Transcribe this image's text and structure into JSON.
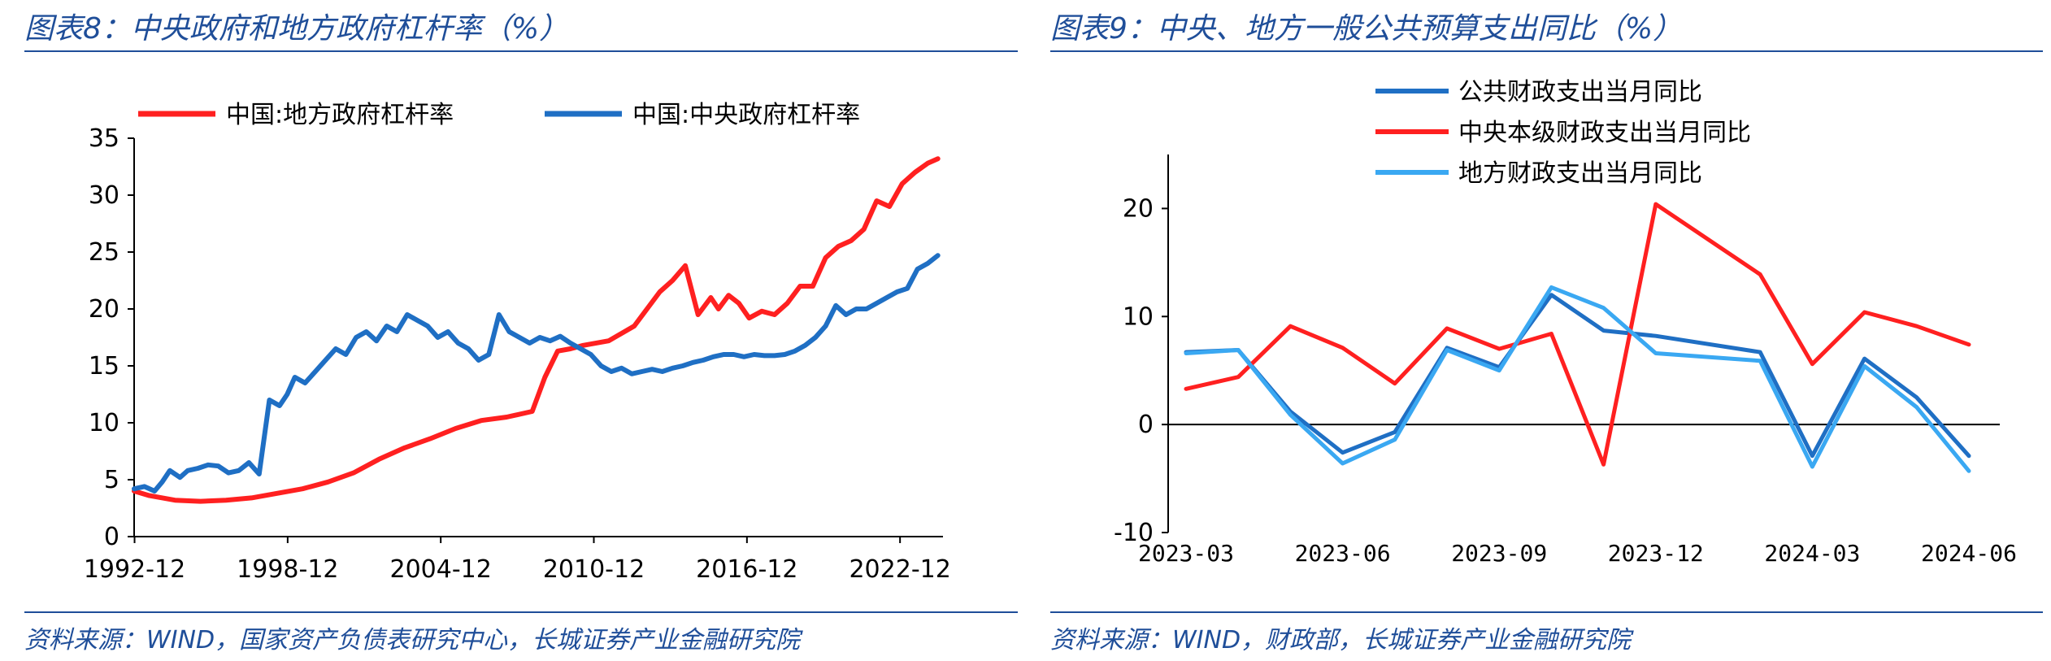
{
  "left": {
    "title": "图表8：中央政府和地方政府杠杆率（%）",
    "source": "资料来源：WIND，国家资产负债表研究中心，长城证券产业金融研究院",
    "chart_data": {
      "type": "line",
      "x_ticks": [
        "1992-12",
        "1998-12",
        "2004-12",
        "2010-12",
        "2016-12",
        "2022-12"
      ],
      "ylim": [
        0,
        35
      ],
      "y_ticks": [
        0,
        5,
        10,
        15,
        20,
        25,
        30,
        35
      ],
      "xlabel": "",
      "ylabel": "",
      "legend_position": "top",
      "series": [
        {
          "name": "中国:地方政府杠杆率",
          "color": "#ff2020",
          "x": [
            1992.9,
            1993.5,
            1994.5,
            1995.5,
            1996.5,
            1997.5,
            1998.5,
            1999.5,
            2000.5,
            2001.5,
            2002.5,
            2003.5,
            2004.5,
            2005.5,
            2006.5,
            2007.5,
            2008.5,
            2009.0,
            2009.5,
            2010.0,
            2010.5,
            2011.5,
            2012.5,
            2013.0,
            2013.5,
            2014.0,
            2014.5,
            2015.0,
            2015.5,
            2015.8,
            2016.2,
            2016.6,
            2017.0,
            2017.5,
            2018.0,
            2018.5,
            2019.0,
            2019.5,
            2020.0,
            2020.5,
            2021.0,
            2021.5,
            2022.0,
            2022.5,
            2023.0,
            2023.5,
            2024.0,
            2024.4
          ],
          "values": [
            4.0,
            3.6,
            3.2,
            3.1,
            3.2,
            3.4,
            3.8,
            4.2,
            4.8,
            5.6,
            6.8,
            7.8,
            8.6,
            9.5,
            10.2,
            10.5,
            11.0,
            14.0,
            16.3,
            16.5,
            16.8,
            17.2,
            18.5,
            20.0,
            21.5,
            22.5,
            23.8,
            19.5,
            21.0,
            20.0,
            21.2,
            20.5,
            19.2,
            19.8,
            19.5,
            20.5,
            22.0,
            22.0,
            24.5,
            25.5,
            26.0,
            27.0,
            29.5,
            29.0,
            31.0,
            32.0,
            32.8,
            33.2
          ]
        },
        {
          "name": "中国:中央政府杠杆率",
          "color": "#1f6fc4",
          "x": [
            1992.9,
            1993.3,
            1993.7,
            1994.0,
            1994.3,
            1994.7,
            1995.0,
            1995.4,
            1995.8,
            1996.2,
            1996.6,
            1997.0,
            1997.4,
            1997.8,
            1998.2,
            1998.6,
            1998.9,
            1999.2,
            1999.6,
            2000.0,
            2000.4,
            2000.8,
            2001.2,
            2001.6,
            2002.0,
            2002.4,
            2002.8,
            2003.2,
            2003.6,
            2004.0,
            2004.4,
            2004.8,
            2005.2,
            2005.6,
            2006.0,
            2006.4,
            2006.8,
            2007.2,
            2007.6,
            2008.0,
            2008.4,
            2008.8,
            2009.2,
            2009.6,
            2010.0,
            2010.4,
            2010.8,
            2011.2,
            2011.6,
            2012.0,
            2012.4,
            2012.8,
            2013.2,
            2013.6,
            2014.0,
            2014.4,
            2014.8,
            2015.2,
            2015.6,
            2016.0,
            2016.4,
            2016.8,
            2017.2,
            2017.6,
            2018.0,
            2018.4,
            2018.8,
            2019.2,
            2019.6,
            2020.0,
            2020.4,
            2020.8,
            2021.2,
            2021.6,
            2022.0,
            2022.4,
            2022.8,
            2023.2,
            2023.6,
            2024.0,
            2024.4
          ],
          "values": [
            4.2,
            4.4,
            4.0,
            4.8,
            5.8,
            5.2,
            5.8,
            6.0,
            6.3,
            6.2,
            5.6,
            5.8,
            6.5,
            5.5,
            12.0,
            11.5,
            12.5,
            14.0,
            13.5,
            14.5,
            15.5,
            16.5,
            16.0,
            17.5,
            18.0,
            17.2,
            18.5,
            18.0,
            19.5,
            19.0,
            18.5,
            17.5,
            18.0,
            17.0,
            16.5,
            15.5,
            16.0,
            19.5,
            18.0,
            17.5,
            17.0,
            17.5,
            17.2,
            17.6,
            17.0,
            16.5,
            16.0,
            15.0,
            14.5,
            14.8,
            14.3,
            14.5,
            14.7,
            14.5,
            14.8,
            15.0,
            15.3,
            15.5,
            15.8,
            16.0,
            16.0,
            15.8,
            16.0,
            15.9,
            15.9,
            16.0,
            16.3,
            16.8,
            17.5,
            18.5,
            20.3,
            19.5,
            20.0,
            20.0,
            20.5,
            21.0,
            21.5,
            21.8,
            23.5,
            24.0,
            24.7
          ]
        }
      ]
    }
  },
  "right": {
    "title": "图表9：中央、地方一般公共预算支出同比（%）",
    "source": "资料来源：WIND，财政部，长城证券产业金融研究院",
    "chart_data": {
      "type": "line",
      "categories": [
        "2023-03",
        "2023-04",
        "2023-05",
        "2023-06",
        "2023-07",
        "2023-08",
        "2023-09",
        "2023-10",
        "2023-11",
        "2023-12",
        "2024-01",
        "2024-02",
        "2024-03",
        "2024-04",
        "2024-05",
        "2024-06"
      ],
      "x_ticks": [
        "2023-03",
        "2023-06",
        "2023-09",
        "2023-12",
        "2024-03",
        "2024-06"
      ],
      "ylim": [
        -10,
        25
      ],
      "y_ticks": [
        -10,
        0,
        10,
        20
      ],
      "xlabel": "",
      "ylabel": "",
      "legend_position": "top",
      "series": [
        {
          "name": "公共财政支出当月同比",
          "color": "#1f6fc4",
          "values": [
            6.7,
            6.9,
            1.2,
            -2.6,
            -0.7,
            7.1,
            5.3,
            12.0,
            8.7,
            8.2,
            null,
            6.7,
            -2.9,
            6.1,
            2.5,
            -2.9
          ]
        },
        {
          "name": "中央本级财政支出当月同比",
          "color": "#ff2020",
          "values": [
            3.3,
            4.4,
            9.1,
            7.1,
            3.8,
            8.9,
            7.0,
            8.4,
            -3.7,
            20.4,
            null,
            13.9,
            5.6,
            10.4,
            9.1,
            7.4
          ]
        },
        {
          "name": "地方财政支出当月同比",
          "color": "#3aa8f2",
          "values": [
            6.6,
            6.9,
            0.9,
            -3.6,
            -1.4,
            6.9,
            5.0,
            12.7,
            10.8,
            6.6,
            null,
            5.9,
            -3.9,
            5.4,
            1.6,
            -4.3
          ]
        }
      ]
    }
  }
}
